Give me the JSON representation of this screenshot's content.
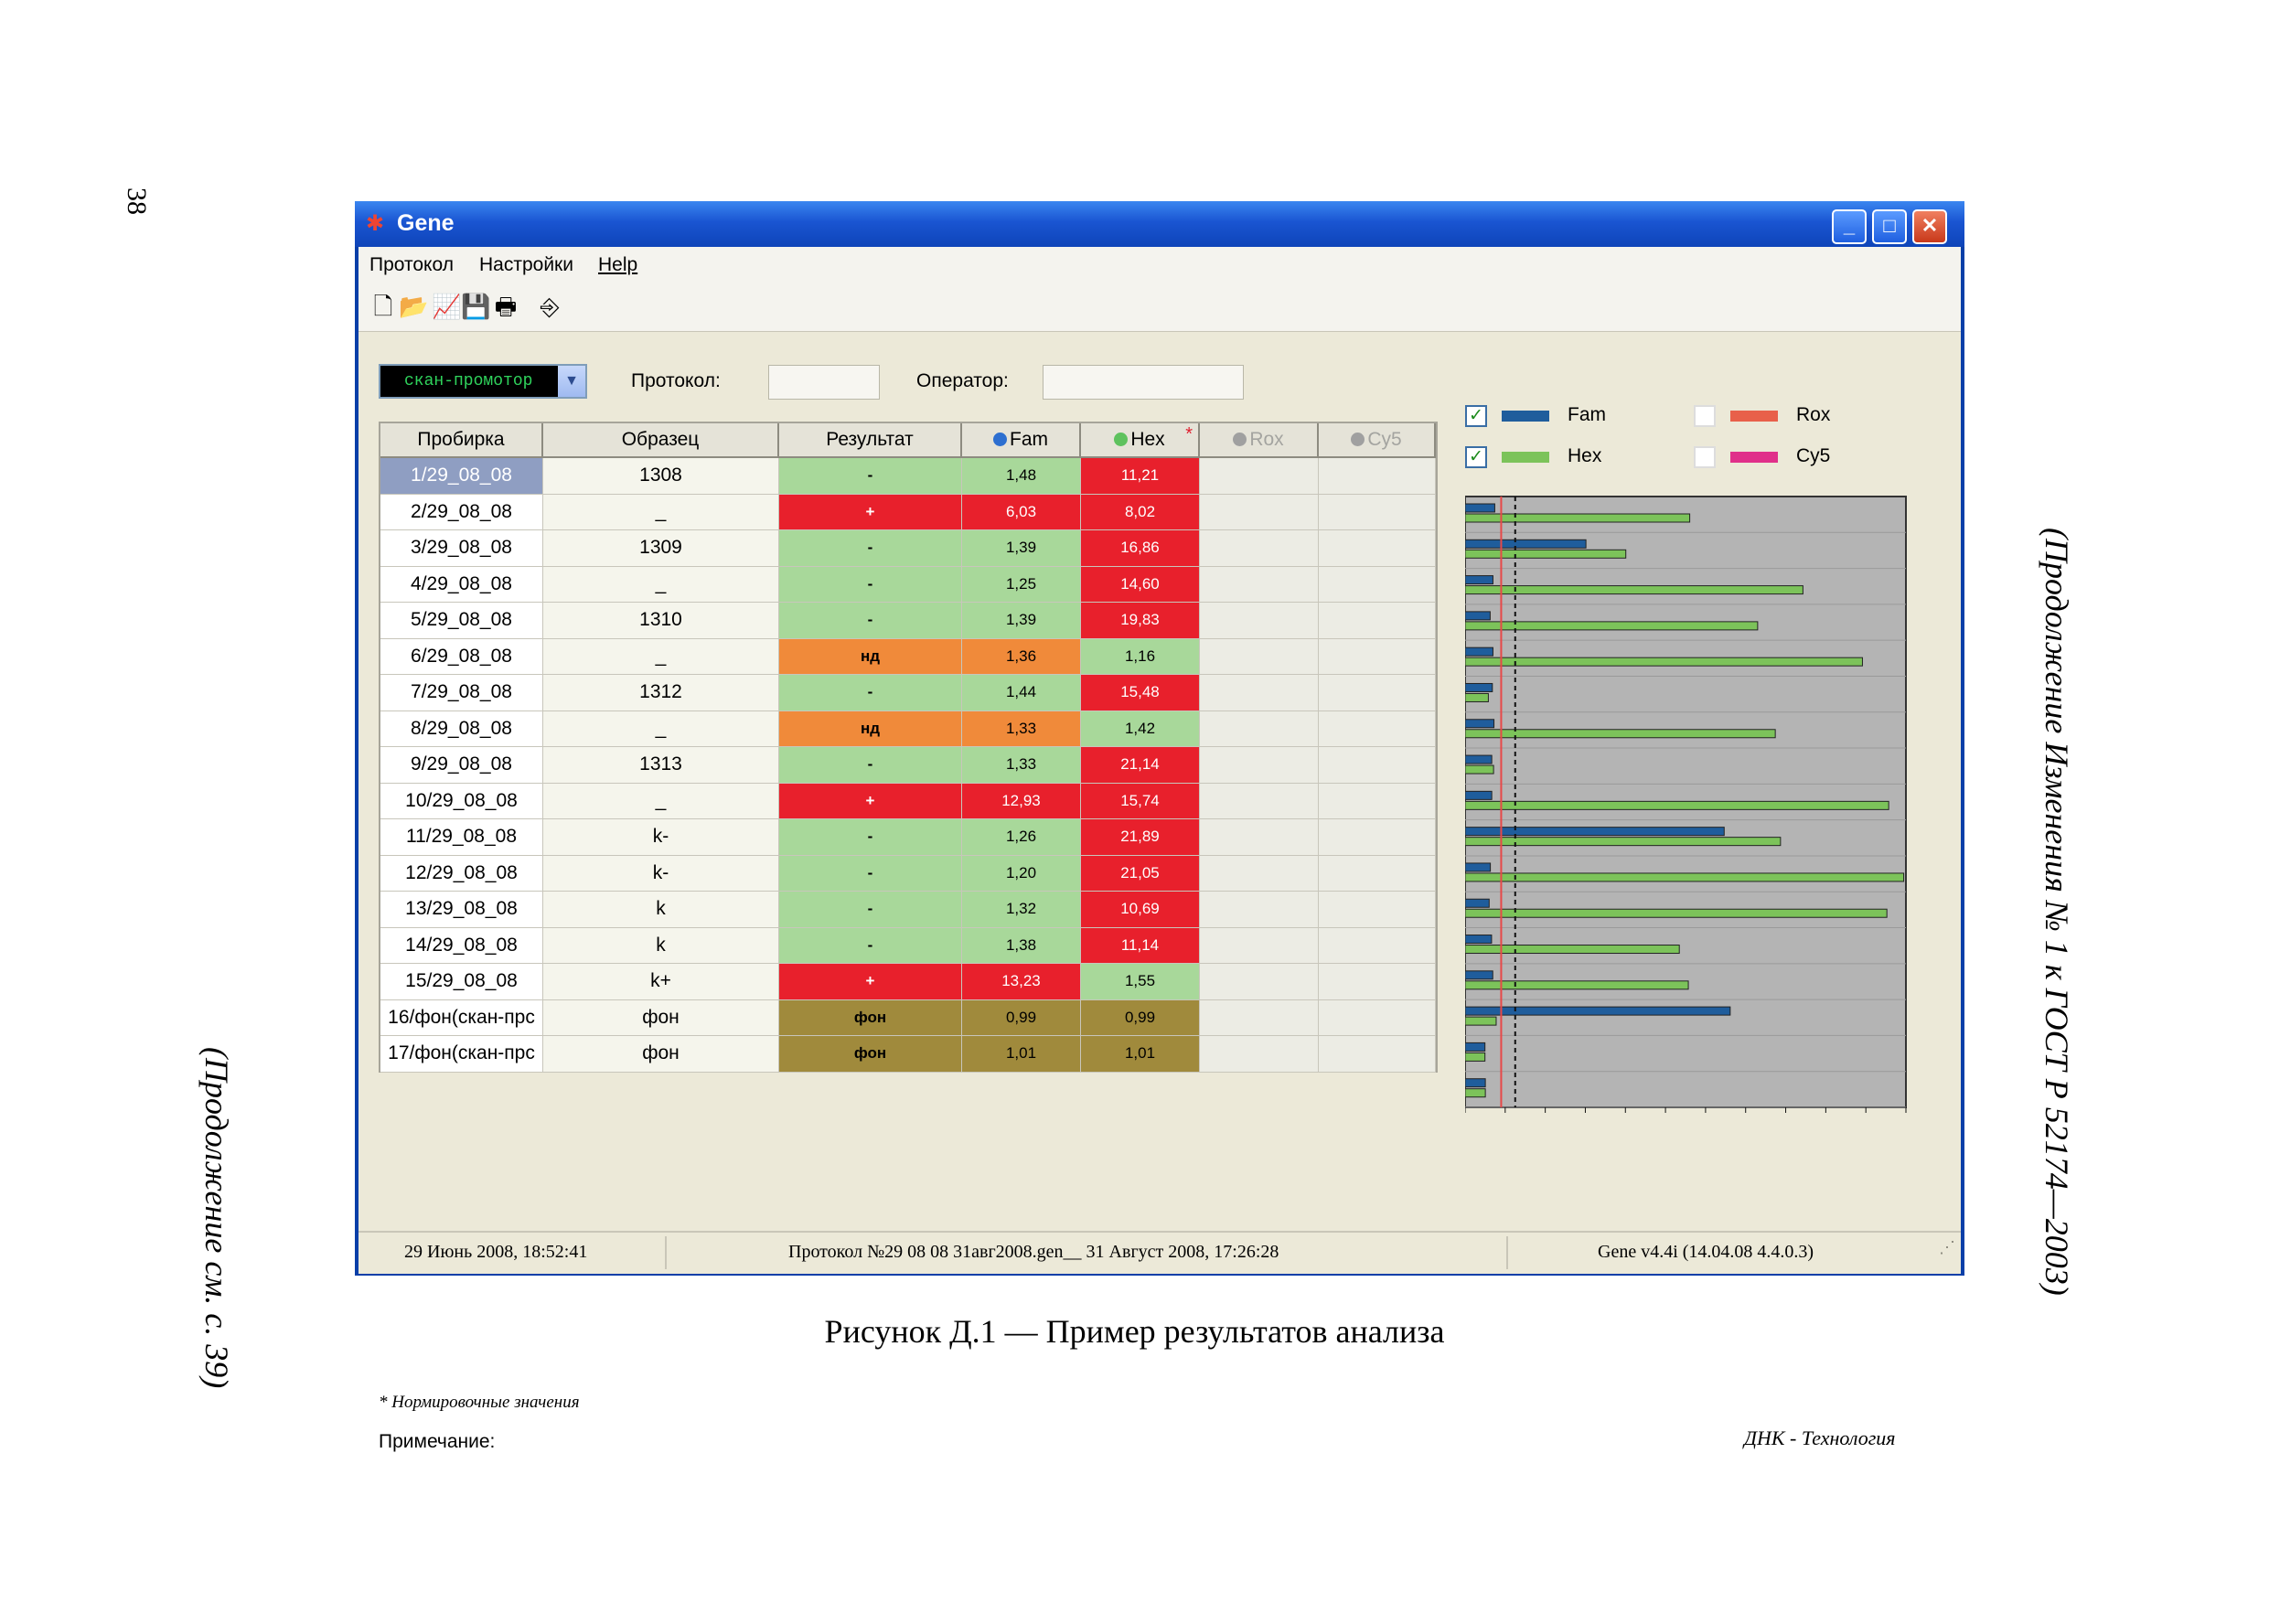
{
  "page": {
    "number": "38",
    "side_left": "(Продолжение см. с. 39)",
    "side_right": "(Продолжение Изменения № 1 к ГОСТ Р 52174—2003)",
    "caption": "Рисунок Д.1 — Пример результатов анализа"
  },
  "window": {
    "title": "Gene",
    "minimize": "_",
    "maximize": "□",
    "close": "✕"
  },
  "menu": [
    "Протокол",
    "Настройки",
    "Help"
  ],
  "toolbar": [
    {
      "name": "new-file-icon",
      "glyph": "🗋"
    },
    {
      "name": "open-folder-icon",
      "glyph": "📂"
    },
    {
      "name": "chart-icon",
      "glyph": "📈"
    },
    {
      "name": "save-icon",
      "glyph": "💾"
    },
    {
      "name": "print-icon",
      "glyph": "🖶"
    },
    {
      "name": "exit-icon",
      "glyph": "⎆"
    }
  ],
  "controls": {
    "mode": "скан-промотор",
    "protocol_label": "Протокол:",
    "protocol_value": "",
    "operator_label": "Оператор:",
    "operator_value": ""
  },
  "table": {
    "columns": [
      "Пробирка",
      "Образец",
      "Результат",
      "Fam",
      "Hex",
      "Rox",
      "Cy5"
    ],
    "hex_marker": "*",
    "rows": [
      {
        "tube": "1/29_08_08",
        "sample": "1308",
        "result": "-",
        "fam": "1,48",
        "hex": "11,21",
        "rc": "green",
        "fc": "green",
        "hc": "red"
      },
      {
        "tube": "2/29_08_08",
        "sample": "_",
        "result": "+",
        "fam": "6,03",
        "hex": "8,02",
        "rc": "red",
        "fc": "red",
        "hc": "red"
      },
      {
        "tube": "3/29_08_08",
        "sample": "1309",
        "result": "-",
        "fam": "1,39",
        "hex": "16,86",
        "rc": "green",
        "fc": "green",
        "hc": "red"
      },
      {
        "tube": "4/29_08_08",
        "sample": "_",
        "result": "-",
        "fam": "1,25",
        "hex": "14,60",
        "rc": "green",
        "fc": "green",
        "hc": "red"
      },
      {
        "tube": "5/29_08_08",
        "sample": "1310",
        "result": "-",
        "fam": "1,39",
        "hex": "19,83",
        "rc": "green",
        "fc": "green",
        "hc": "red"
      },
      {
        "tube": "6/29_08_08",
        "sample": "_",
        "result": "нд",
        "fam": "1,36",
        "hex": "1,16",
        "rc": "orange",
        "fc": "orange",
        "hc": "green"
      },
      {
        "tube": "7/29_08_08",
        "sample": "1312",
        "result": "-",
        "fam": "1,44",
        "hex": "15,48",
        "rc": "green",
        "fc": "green",
        "hc": "red"
      },
      {
        "tube": "8/29_08_08",
        "sample": "_",
        "result": "нд",
        "fam": "1,33",
        "hex": "1,42",
        "rc": "orange",
        "fc": "orange",
        "hc": "green"
      },
      {
        "tube": "9/29_08_08",
        "sample": "1313",
        "result": "-",
        "fam": "1,33",
        "hex": "21,14",
        "rc": "green",
        "fc": "green",
        "hc": "red"
      },
      {
        "tube": "10/29_08_08",
        "sample": "_",
        "result": "+",
        "fam": "12,93",
        "hex": "15,74",
        "rc": "red",
        "fc": "red",
        "hc": "red"
      },
      {
        "tube": "11/29_08_08",
        "sample": "k-",
        "result": "-",
        "fam": "1,26",
        "hex": "21,89",
        "rc": "green",
        "fc": "green",
        "hc": "red"
      },
      {
        "tube": "12/29_08_08",
        "sample": "k-",
        "result": "-",
        "fam": "1,20",
        "hex": "21,05",
        "rc": "green",
        "fc": "green",
        "hc": "red"
      },
      {
        "tube": "13/29_08_08",
        "sample": "k",
        "result": "-",
        "fam": "1,32",
        "hex": "10,69",
        "rc": "green",
        "fc": "green",
        "hc": "red"
      },
      {
        "tube": "14/29_08_08",
        "sample": "k",
        "result": "-",
        "fam": "1,38",
        "hex": "11,14",
        "rc": "green",
        "fc": "green",
        "hc": "red"
      },
      {
        "tube": "15/29_08_08",
        "sample": "k+",
        "result": "+",
        "fam": "13,23",
        "hex": "1,55",
        "rc": "red",
        "fc": "red",
        "hc": "green"
      },
      {
        "tube": "16/фон(скан-прс",
        "sample": "фон",
        "result": "фон",
        "fam": "0,99",
        "hex": "0,99",
        "rc": "olive",
        "fc": "olive",
        "hc": "olive"
      },
      {
        "tube": "17/фон(скан-прс",
        "sample": "фон",
        "result": "фон",
        "fam": "1,01",
        "hex": "1,01",
        "rc": "olive",
        "fc": "olive",
        "hc": "olive"
      }
    ]
  },
  "colors": {
    "green": "#a8d89a",
    "red": "#e8202c",
    "orange": "#f08a3a",
    "olive": "#a08a3c",
    "fam": "#1f5d9c",
    "hex": "#7cc35a",
    "rox": "#e8604a",
    "cy5": "#e0308a",
    "plot_bg": "#b4b4b4",
    "threshold_red": "#e84848"
  },
  "legend": [
    {
      "name": "Fam",
      "checked": true,
      "color_key": "fam"
    },
    {
      "name": "Hex",
      "checked": true,
      "color_key": "hex"
    },
    {
      "name": "Rox",
      "checked": false,
      "color_key": "rox"
    },
    {
      "name": "Cy5",
      "checked": false,
      "color_key": "cy5"
    }
  ],
  "chart_data": {
    "type": "bar",
    "orientation": "horizontal",
    "xlim": [
      0,
      22
    ],
    "xticks": [
      0,
      2,
      4,
      6,
      8,
      10,
      12,
      14,
      16,
      18,
      20,
      22
    ],
    "thresholds": {
      "red": 1.8,
      "dashed": 2.5
    },
    "series": [
      {
        "name": "Fam",
        "values": [
          1.48,
          6.03,
          1.39,
          1.25,
          1.39,
          1.36,
          1.44,
          1.33,
          1.33,
          12.93,
          1.26,
          1.2,
          1.32,
          1.38,
          13.23,
          0.99,
          1.01
        ]
      },
      {
        "name": "Hex",
        "values": [
          11.21,
          8.02,
          16.86,
          14.6,
          19.83,
          1.16,
          15.48,
          1.42,
          21.14,
          15.74,
          21.89,
          21.05,
          10.69,
          11.14,
          1.55,
          0.99,
          1.01
        ]
      }
    ]
  },
  "notes": {
    "normalization": "* Нормировочные значения",
    "remark_label": "Примечание:",
    "brand": "ДНК - Технология"
  },
  "status": {
    "date": "29 Июнь 2008, 18:52:41",
    "protocol": "Протокол №29 08 08 31авг2008.gen__ 31 Август 2008, 17:26:28",
    "version": "Gene v4.4i (14.04.08 4.4.0.3)"
  }
}
